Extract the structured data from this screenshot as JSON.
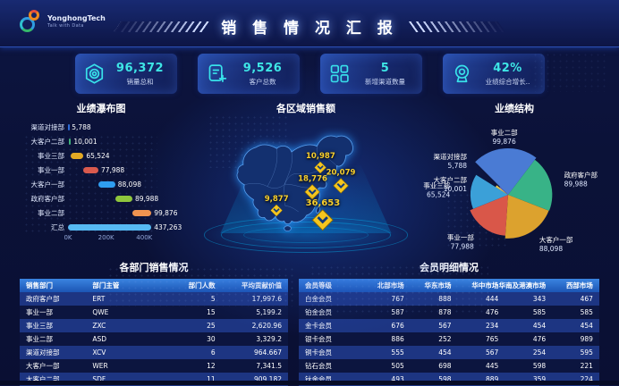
{
  "header": {
    "brand": "YonghongTech",
    "tagline": "Talk with Data",
    "title": "销 售 情 况 汇 报"
  },
  "kpis": [
    {
      "icon": "hexagon-nut-icon",
      "value": "96,372",
      "label": "销量总和"
    },
    {
      "icon": "document-add-icon",
      "value": "9,526",
      "label": "客户总数"
    },
    {
      "icon": "grid-icon",
      "value": "5",
      "label": "新增渠道数量"
    },
    {
      "icon": "target-icon",
      "value": "42%",
      "label": "业绩综合增长.."
    }
  ],
  "chart_data": [
    {
      "id": "waterfall",
      "type": "bar",
      "subtype": "waterfall",
      "orientation": "horizontal",
      "title": "业绩瀑布图",
      "categories": [
        "渠道对接部",
        "大客户二部",
        "事业三部",
        "事业一部",
        "大客户一部",
        "政府客户部",
        "事业二部",
        "汇总"
      ],
      "values": [
        5788,
        10001,
        65524,
        77988,
        88098,
        89988,
        99876,
        437263
      ],
      "starts": [
        0,
        5788,
        15789,
        81313,
        159301,
        247399,
        337387,
        0
      ],
      "value_labels": [
        "5,788",
        "10,001",
        "65,524",
        "77,988",
        "88,098",
        "89,988",
        "99,876",
        "437,263"
      ],
      "colors": [
        "#2e6bd6",
        "#3fae7a",
        "#e3a924",
        "#d95a4e",
        "#2f9df0",
        "#8fc63d",
        "#ef9350",
        "#56b9f2"
      ],
      "x_ticks": [
        {
          "label": "0K",
          "value": 0
        },
        {
          "label": "200K",
          "value": 200000
        },
        {
          "label": "400K",
          "value": 400000
        }
      ],
      "xlim": [
        0,
        600000
      ],
      "grid": false,
      "legend": false
    },
    {
      "id": "region-map",
      "type": "map",
      "title": "各区域销售额",
      "marker_color": "#f5c51e",
      "points": [
        {
          "label": "10,987",
          "value": 10987,
          "x_pct": 56.5,
          "y_pct": 33
        },
        {
          "label": "20,079",
          "value": 20079,
          "x_pct": 65.5,
          "y_pct": 46
        },
        {
          "label": "18,776",
          "value": 18776,
          "x_pct": 53,
          "y_pct": 50.5
        },
        {
          "label": "9,877",
          "value": 9877,
          "x_pct": 37,
          "y_pct": 64
        },
        {
          "label": "36,653",
          "value": 36653,
          "x_pct": 57.5,
          "y_pct": 69.5
        }
      ]
    },
    {
      "id": "rose",
      "type": "pie",
      "subtype": "rose",
      "title": "业绩结构",
      "labels": [
        "事业二部",
        "政府客户部",
        "大客户一部",
        "事业一部",
        "事业三部",
        "大客户二部",
        "渠道对接部"
      ],
      "values": [
        99876,
        89988,
        88098,
        77988,
        65524,
        10001,
        5788
      ],
      "value_labels": [
        "99,876",
        "89,988",
        "88,098",
        "77,988",
        "65,524",
        "10,001",
        "5,788"
      ],
      "colors": [
        "#4a7bd4",
        "#38b387",
        "#dca22e",
        "#d95749",
        "#3ba0d8",
        "#e8c84a",
        "#6f63c9"
      ],
      "start_angle_deg": -45,
      "legend": false
    },
    {
      "id": "dept-table",
      "type": "table",
      "title": "各部门销售情况",
      "columns": [
        "销售部门",
        "部门主管",
        "部门人数",
        "平均贡献价值"
      ],
      "aligns": [
        "l",
        "l",
        "r",
        "r"
      ],
      "rows": [
        [
          "政府客户部",
          "ERT",
          "5",
          "17,997.6"
        ],
        [
          "事业一部",
          "QWE",
          "15",
          "5,199.2"
        ],
        [
          "事业三部",
          "ZXC",
          "25",
          "2,620.96"
        ],
        [
          "事业二部",
          "ASD",
          "30",
          "3,329.2"
        ],
        [
          "渠道对接部",
          "XCV",
          "6",
          "964.667"
        ],
        [
          "大客户一部",
          "WER",
          "12",
          "7,341.5"
        ],
        [
          "大客户二部",
          "SDF",
          "11",
          "909.182"
        ]
      ]
    },
    {
      "id": "member-table",
      "type": "table",
      "title": "会员明细情况",
      "columns": [
        "会员等级",
        "北部市场",
        "华东市场",
        "华中市场",
        "华南及港澳市场",
        "西部市场"
      ],
      "aligns": [
        "l",
        "r",
        "r",
        "r",
        "r",
        "r"
      ],
      "rows": [
        [
          "白金会员",
          "767",
          "888",
          "444",
          "343",
          "467"
        ],
        [
          "铂金会员",
          "587",
          "878",
          "476",
          "585",
          "585"
        ],
        [
          "金卡会员",
          "676",
          "567",
          "234",
          "454",
          "454"
        ],
        [
          "银卡会员",
          "886",
          "252",
          "765",
          "476",
          "989"
        ],
        [
          "铜卡会员",
          "555",
          "454",
          "567",
          "254",
          "595"
        ],
        [
          "钻石会员",
          "505",
          "698",
          "445",
          "598",
          "221"
        ],
        [
          "钛金会员",
          "493",
          "598",
          "889",
          "359",
          "224"
        ]
      ]
    }
  ],
  "colors": {
    "accent_cyan": "#35e0e8",
    "marker_yellow": "#f5c51e",
    "table_header_blue": "#2b76d9",
    "background_navy": "#0b1238"
  }
}
